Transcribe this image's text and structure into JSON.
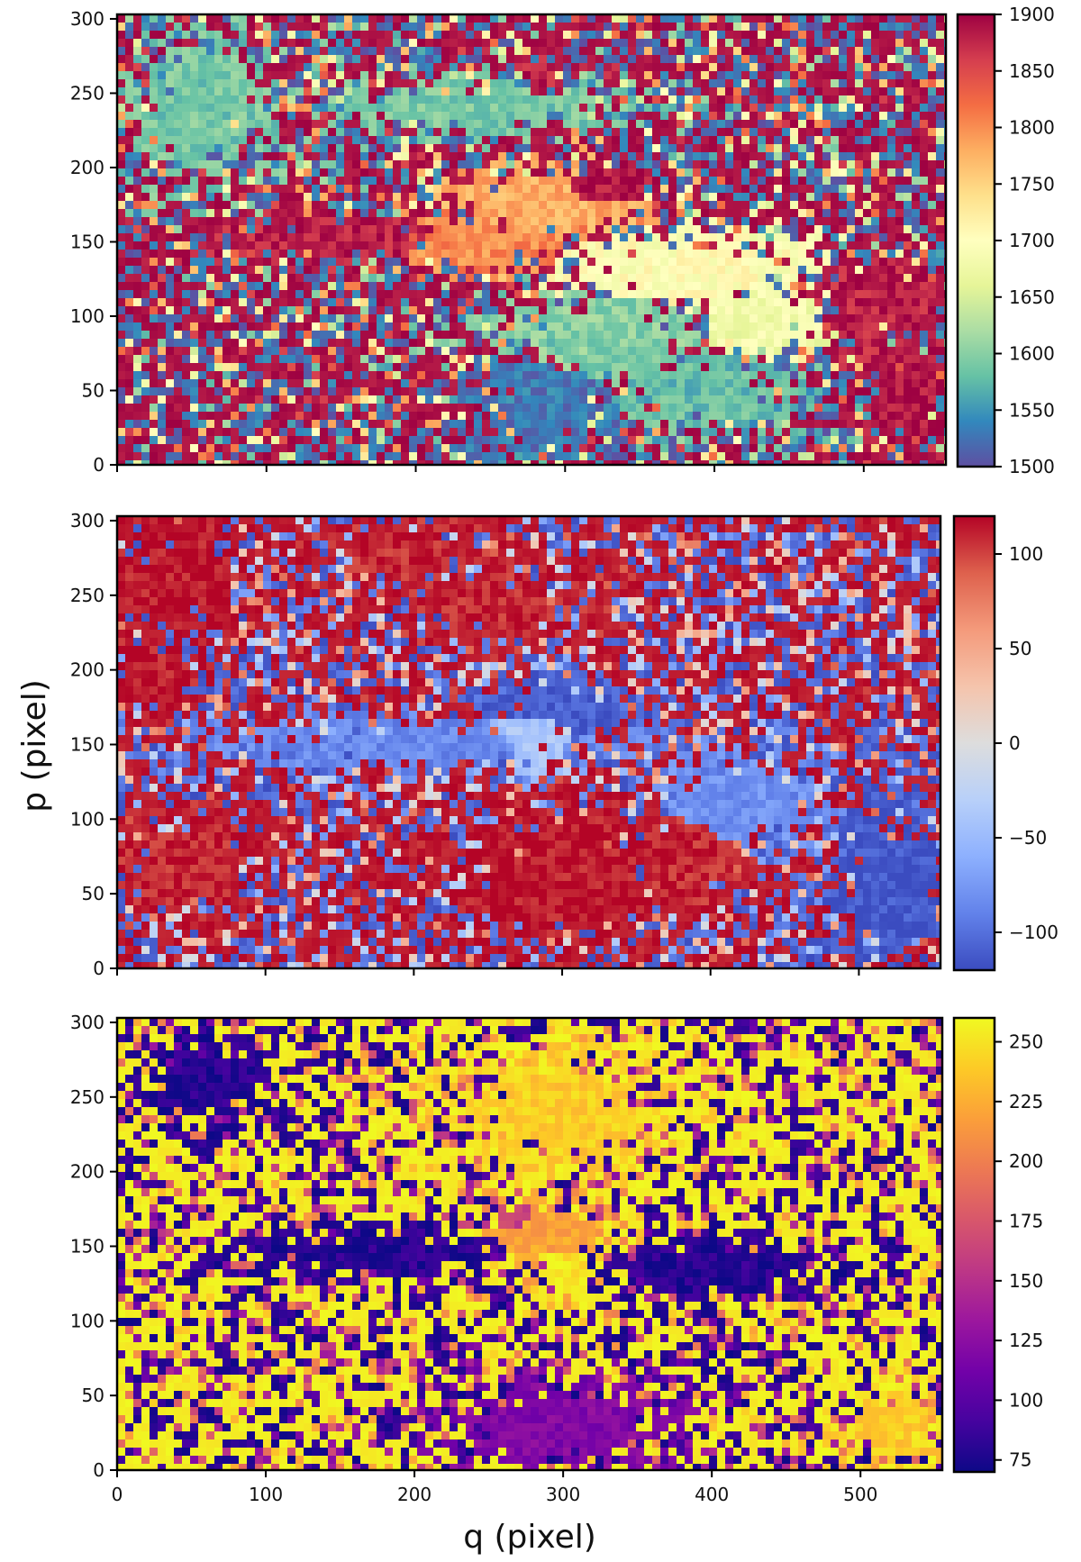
{
  "figure": {
    "xlabel": "q (pixel)",
    "ylabel": "p (pixel)"
  },
  "chart_data": [
    {
      "type": "heatmap",
      "xlim": [
        0,
        555
      ],
      "ylim": [
        0,
        303
      ],
      "x_ticks": [
        "0",
        "100",
        "200",
        "300",
        "400",
        "500"
      ],
      "x_ticks_labeled": false,
      "y_ticks": [
        "0",
        "50",
        "100",
        "150",
        "200",
        "250",
        "300"
      ],
      "colormap": "Spectral_r",
      "colormap_stops": [
        "#5e4fa2",
        "#3288bd",
        "#66c2a5",
        "#abdda4",
        "#e6f598",
        "#ffffbf",
        "#fee08b",
        "#fdae61",
        "#f46d43",
        "#d53e4f",
        "#9e0142"
      ],
      "clim": [
        1500,
        1900
      ],
      "colorbar_ticks": [
        "1500",
        "1550",
        "1600",
        "1650",
        "1700",
        "1750",
        "1800",
        "1850",
        "1900"
      ],
      "regions": [
        {
          "q": 150,
          "p": 150,
          "value": 1880,
          "rq": 90,
          "rp": 14
        },
        {
          "q": 240,
          "p": 148,
          "value": 1800,
          "rq": 60,
          "rp": 20
        },
        {
          "q": 290,
          "p": 175,
          "value": 1780,
          "rq": 60,
          "rp": 25
        },
        {
          "q": 320,
          "p": 185,
          "value": 1890,
          "rq": 35,
          "rp": 14
        },
        {
          "q": 285,
          "p": 260,
          "value": 1880,
          "rq": 14,
          "rp": 14
        },
        {
          "q": 380,
          "p": 130,
          "value": 1700,
          "rq": 90,
          "rp": 25
        },
        {
          "q": 330,
          "p": 85,
          "value": 1600,
          "rq": 70,
          "rp": 35
        },
        {
          "q": 290,
          "p": 40,
          "value": 1530,
          "rq": 45,
          "rp": 40
        },
        {
          "q": 390,
          "p": 50,
          "value": 1580,
          "rq": 60,
          "rp": 30
        },
        {
          "q": 430,
          "p": 100,
          "value": 1680,
          "rq": 40,
          "rp": 30
        },
        {
          "q": 240,
          "p": 240,
          "value": 1590,
          "rq": 90,
          "rp": 18
        },
        {
          "q": 60,
          "p": 240,
          "value": 1590,
          "rq": 45,
          "rp": 45
        },
        {
          "q": 510,
          "p": 110,
          "value": 1880,
          "rq": 40,
          "rp": 30
        },
        {
          "q": 530,
          "p": 45,
          "value": 1890,
          "rq": 25,
          "rp": 35
        }
      ]
    },
    {
      "type": "heatmap",
      "xlim": [
        0,
        555
      ],
      "ylim": [
        0,
        303
      ],
      "x_ticks": [
        "0",
        "100",
        "200",
        "300",
        "400",
        "500"
      ],
      "x_ticks_labeled": false,
      "y_ticks": [
        "0",
        "50",
        "100",
        "150",
        "200",
        "250",
        "300"
      ],
      "colormap": "coolwarm",
      "colormap_stops": [
        "#3b4cc0",
        "#6282ea",
        "#8db0fe",
        "#b8d0f9",
        "#dddddd",
        "#f5c4ac",
        "#f49a7b",
        "#de614d",
        "#b40426"
      ],
      "clim": [
        -120,
        120
      ],
      "colorbar_ticks": [
        "−100",
        "−50",
        "0",
        "50",
        "100"
      ],
      "regions": [
        {
          "q": 40,
          "p": 260,
          "value": 115,
          "rq": 45,
          "rp": 45
        },
        {
          "q": 25,
          "p": 195,
          "value": 115,
          "rq": 30,
          "rp": 25
        },
        {
          "q": 190,
          "p": 280,
          "value": 110,
          "rq": 60,
          "rp": 18
        },
        {
          "q": 250,
          "p": 245,
          "value": 110,
          "rq": 55,
          "rp": 25
        },
        {
          "q": 200,
          "p": 150,
          "value": -85,
          "rq": 130,
          "rp": 16
        },
        {
          "q": 300,
          "p": 175,
          "value": -110,
          "rq": 50,
          "rp": 18
        },
        {
          "q": 280,
          "p": 155,
          "value": -40,
          "rq": 30,
          "rp": 25
        },
        {
          "q": 285,
          "p": 150,
          "value": 115,
          "rq": 10,
          "rp": 8
        },
        {
          "q": 300,
          "p": 60,
          "value": 115,
          "rq": 70,
          "rp": 55
        },
        {
          "q": 380,
          "p": 75,
          "value": 110,
          "rq": 40,
          "rp": 35
        },
        {
          "q": 420,
          "p": 110,
          "value": -80,
          "rq": 60,
          "rp": 30
        },
        {
          "q": 520,
          "p": 55,
          "value": -115,
          "rq": 35,
          "rp": 55
        },
        {
          "q": 50,
          "p": 70,
          "value": 110,
          "rq": 50,
          "rp": 35
        }
      ]
    },
    {
      "type": "heatmap",
      "xlim": [
        0,
        555
      ],
      "ylim": [
        0,
        303
      ],
      "x_ticks": [
        "0",
        "100",
        "200",
        "300",
        "400",
        "500"
      ],
      "y_ticks": [
        "0",
        "50",
        "100",
        "150",
        "200",
        "250",
        "300"
      ],
      "colormap": "plasma",
      "colormap_stops": [
        "#0d0887",
        "#46039f",
        "#7201a8",
        "#9c179e",
        "#bd3786",
        "#d8576b",
        "#ed7953",
        "#fb9f3a",
        "#fdca26",
        "#f0f921"
      ],
      "clim": [
        70,
        260
      ],
      "colorbar_ticks": [
        "75",
        "100",
        "125",
        "150",
        "175",
        "200",
        "225",
        "250"
      ],
      "regions": [
        {
          "q": 170,
          "p": 145,
          "value": 80,
          "rq": 100,
          "rp": 14
        },
        {
          "q": 400,
          "p": 135,
          "value": 80,
          "rq": 70,
          "rp": 20
        },
        {
          "q": 290,
          "p": 160,
          "value": 220,
          "rq": 35,
          "rp": 25
        },
        {
          "q": 300,
          "p": 135,
          "value": 250,
          "rq": 15,
          "rp": 15
        },
        {
          "q": 270,
          "p": 170,
          "value": 160,
          "rq": 20,
          "rp": 12
        },
        {
          "q": 300,
          "p": 30,
          "value": 120,
          "rq": 70,
          "rp": 30
        },
        {
          "q": 60,
          "p": 260,
          "value": 80,
          "rq": 40,
          "rp": 30
        },
        {
          "q": 300,
          "p": 240,
          "value": 240,
          "rq": 60,
          "rp": 40
        },
        {
          "q": 520,
          "p": 30,
          "value": 240,
          "rq": 30,
          "rp": 25
        }
      ]
    }
  ]
}
